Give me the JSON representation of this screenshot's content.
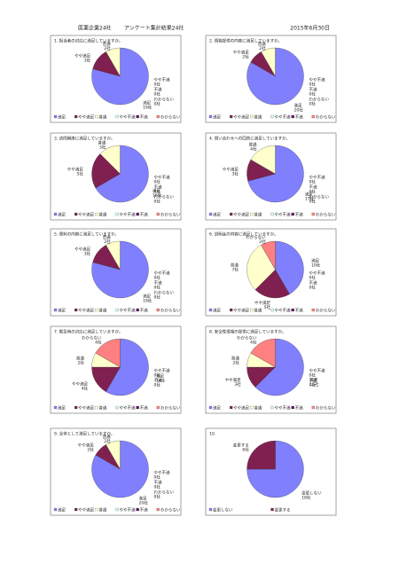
{
  "header": {
    "left": "医薬企業24社",
    "center": "アンケート集計結果24社",
    "date": "2015年6月30日"
  },
  "chart_data": [
    {
      "type": "pie",
      "title": "1. 担当者の対応に満足していますか。",
      "categories": [
        "満足",
        "やや満足",
        "普通",
        "やや不満",
        "不満",
        "わからない"
      ],
      "values": [
        19,
        3,
        2,
        0,
        0,
        0
      ],
      "value_labels": [
        "19社",
        "3社",
        "2社",
        "0社",
        "0社",
        "0社"
      ],
      "colors": [
        "#8080ff",
        "#802050",
        "#ffffcc",
        "#ccffff",
        "#660066",
        "#ff8080"
      ]
    },
    {
      "type": "pie",
      "title": "2. 情報提供の内容に満足していますか。",
      "categories": [
        "満足",
        "やや満足",
        "普通",
        "やや不満",
        "不満",
        "わからない"
      ],
      "values": [
        20,
        2,
        2,
        0,
        0,
        0
      ],
      "value_labels": [
        "20社",
        "2社",
        "2社",
        "0社",
        "0社",
        "0社"
      ],
      "colors": [
        "#8080ff",
        "#802050",
        "#ffffcc",
        "#ccffff",
        "#660066",
        "#ff8080"
      ]
    },
    {
      "type": "pie",
      "title": "3. 訪問頻度に満足していますか。",
      "categories": [
        "満足",
        "やや満足",
        "普通",
        "やや不満",
        "不満",
        "わからない"
      ],
      "values": [
        16,
        5,
        3,
        0,
        0,
        0
      ],
      "value_labels": [
        "16社",
        "5社",
        "3社",
        "0社",
        "0社",
        "0社"
      ],
      "colors": [
        "#8080ff",
        "#802050",
        "#ffffcc",
        "#ccffff",
        "#660066",
        "#ff8080"
      ]
    },
    {
      "type": "pie",
      "title": "4. 問い合わせへの回答に満足していますか。",
      "categories": [
        "満足",
        "やや満足",
        "普通",
        "やや不満",
        "不満",
        "わからない"
      ],
      "values": [
        17,
        3,
        4,
        0,
        0,
        0
      ],
      "value_labels": [
        "17社",
        "3社",
        "4社",
        "0社",
        "0社",
        "0社"
      ],
      "colors": [
        "#8080ff",
        "#802050",
        "#ffffcc",
        "#ccffff",
        "#660066",
        "#ff8080"
      ]
    },
    {
      "type": "pie",
      "title": "5. 資料の内容に満足していますか。",
      "categories": [
        "満足",
        "やや満足",
        "普通",
        "やや不満",
        "不満",
        "わからない"
      ],
      "values": [
        19,
        3,
        2,
        0,
        0,
        0
      ],
      "value_labels": [
        "19社",
        "3社",
        "2社",
        "0社",
        "0社",
        "0社"
      ],
      "colors": [
        "#8080ff",
        "#802050",
        "#ffffcc",
        "#ccffff",
        "#660066",
        "#ff8080"
      ]
    },
    {
      "type": "pie",
      "title": "6. 説明会の内容に満足していますか。",
      "categories": [
        "満足",
        "やや満足",
        "普通",
        "やや不満",
        "不満",
        "わからない"
      ],
      "values": [
        10,
        5,
        7,
        0,
        0,
        2
      ],
      "value_labels": [
        "10社",
        "5社",
        "7社",
        "0社",
        "0社",
        "2社"
      ],
      "colors": [
        "#8080ff",
        "#802050",
        "#ffffcc",
        "#ccffff",
        "#660066",
        "#ff8080"
      ]
    },
    {
      "type": "pie",
      "title": "7. 緊急時の対応に満足していますか。",
      "categories": [
        "満足",
        "やや満足",
        "普通",
        "やや不満",
        "不満",
        "わからない"
      ],
      "values": [
        14,
        4,
        2,
        0,
        0,
        4
      ],
      "value_labels": [
        "14社",
        "4社",
        "2社",
        "0社",
        "0社",
        "4社"
      ],
      "colors": [
        "#8080ff",
        "#802050",
        "#ffffcc",
        "#ccffff",
        "#660066",
        "#ff8080"
      ]
    },
    {
      "type": "pie",
      "title": "8. 安全性情報の提供に満足していますか。",
      "categories": [
        "満足",
        "やや満足",
        "普通",
        "やや不満",
        "不満",
        "わからない"
      ],
      "values": [
        15,
        3,
        2,
        0,
        0,
        4
      ],
      "value_labels": [
        "15社",
        "3社",
        "2社",
        "0社",
        "0社",
        "4社"
      ],
      "colors": [
        "#8080ff",
        "#802050",
        "#ffffcc",
        "#ccffff",
        "#660066",
        "#ff8080"
      ]
    },
    {
      "type": "pie",
      "title": "9. 全体として満足していますか。",
      "categories": [
        "満足",
        "やや満足",
        "普通",
        "やや不満",
        "不満",
        "わからない"
      ],
      "values": [
        20,
        2,
        2,
        0,
        0,
        0
      ],
      "value_labels": [
        "20社",
        "2社",
        "2社",
        "0社",
        "0社",
        "0社"
      ],
      "colors": [
        "#8080ff",
        "#802050",
        "#ffffcc",
        "#ccffff",
        "#660066",
        "#ff8080"
      ]
    },
    {
      "type": "pie",
      "title": "10.",
      "categories": [
        "変更しない",
        "変更する"
      ],
      "values": [
        18,
        6
      ],
      "value_labels": [
        "18社",
        "6社"
      ],
      "colors": [
        "#8080ff",
        "#802050"
      ]
    }
  ]
}
